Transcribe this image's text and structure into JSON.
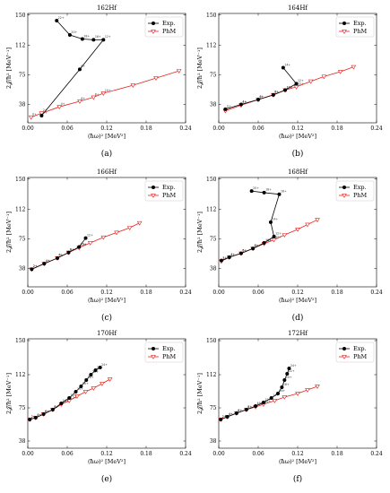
{
  "colors": {
    "exp": "#000000",
    "phm": "#e8201a",
    "frame": "#000000"
  },
  "legend": {
    "exp": "Exp.",
    "phm": "PhM",
    "placement": "upper-right"
  },
  "chart_data": [
    {
      "type": "line",
      "panel": "a",
      "caption": "(a)",
      "title": "162Hf",
      "xlabel": "(ħω)² [MeV²]",
      "ylabel": "2𝒥/ħ² [MeV⁻¹]",
      "xlim": [
        0,
        0.24
      ],
      "ylim": [
        15,
        152
      ],
      "xticks": [
        "0.00",
        "0.06",
        "0.12",
        "0.18",
        "0.24"
      ],
      "yticks": [
        "38",
        "75",
        "112",
        "150"
      ],
      "series": [
        {
          "name": "Exp.",
          "x": [
            0.021,
            0.079,
            0.115,
            0.1,
            0.083,
            0.064,
            0.044
          ],
          "y": [
            24,
            82,
            119,
            119,
            120,
            125,
            143
          ],
          "labels": [
            "2+",
            "6+",
            "12+",
            "16+",
            "18+",
            "20+",
            "22+"
          ]
        },
        {
          "name": "PhM",
          "x": [
            0.005,
            0.021,
            0.048,
            0.079,
            0.1,
            0.115,
            0.16,
            0.195,
            0.23
          ],
          "y": [
            22,
            27,
            35,
            42,
            47,
            52,
            62,
            71,
            80
          ],
          "labels": [
            "0+",
            "2+",
            "4+",
            "6+",
            "8+",
            "10+",
            "",
            "",
            ""
          ]
        }
      ]
    },
    {
      "type": "line",
      "panel": "b",
      "caption": "(b)",
      "title": "164Hf",
      "xlabel": "(ħω)² [MeV²]",
      "ylabel": "2𝒥/ħ² [MeV⁻¹]",
      "xlim": [
        0,
        0.24
      ],
      "ylim": [
        15,
        152
      ],
      "xticks": [
        "0.00",
        "0.06",
        "0.12",
        "0.18",
        "0.24"
      ],
      "yticks": [
        "38",
        "75",
        "112",
        "150"
      ],
      "series": [
        {
          "name": "Exp.",
          "x": [
            0.01,
            0.034,
            0.06,
            0.083,
            0.101,
            0.118,
            0.098
          ],
          "y": [
            32,
            38,
            44,
            50,
            56,
            64,
            84
          ],
          "labels": [
            "2+",
            "4+",
            "6+",
            "8+",
            "10+",
            "12+",
            "14+"
          ]
        },
        {
          "name": "PhM",
          "x": [
            0.01,
            0.034,
            0.06,
            0.083,
            0.101,
            0.118,
            0.14,
            0.16,
            0.185,
            0.205
          ],
          "y": [
            30,
            37,
            44,
            50,
            56,
            60,
            67,
            73,
            79,
            85
          ],
          "labels": [
            "2+",
            "4+",
            "6+",
            "8+",
            "10+",
            "12+",
            "",
            "",
            "",
            ""
          ]
        }
      ]
    },
    {
      "type": "line",
      "panel": "c",
      "caption": "(c)",
      "title": "166Hf",
      "xlabel": "(ħω)² [MeV²]",
      "ylabel": "2𝒥/ħ² [MeV⁻¹]",
      "xlim": [
        0,
        0.24
      ],
      "ylim": [
        15,
        152
      ],
      "xticks": [
        "0.00",
        "0.06",
        "0.12",
        "0.18",
        "0.24"
      ],
      "yticks": [
        "38",
        "75",
        "112",
        "150"
      ],
      "series": [
        {
          "name": "Exp.",
          "x": [
            0.006,
            0.025,
            0.045,
            0.062,
            0.078,
            0.088
          ],
          "y": [
            37,
            44,
            51,
            58,
            65,
            76
          ],
          "labels": [
            "2+",
            "4+",
            "6+",
            "8+",
            "10+",
            "12+"
          ]
        },
        {
          "name": "PhM",
          "x": [
            0.006,
            0.025,
            0.045,
            0.062,
            0.078,
            0.095,
            0.115,
            0.135,
            0.155,
            0.17
          ],
          "y": [
            37,
            44,
            51,
            58,
            64,
            70,
            77,
            83,
            89,
            95
          ],
          "labels": [
            "2+",
            "4+",
            "6+",
            "8+",
            "10+",
            "",
            "",
            "",
            "",
            ""
          ]
        }
      ]
    },
    {
      "type": "line",
      "panel": "d",
      "caption": "(d)",
      "title": "168Hf",
      "xlabel": "(ħω)² [MeV²]",
      "ylabel": "2𝒥/ħ² [MeV⁻¹]",
      "xlim": [
        0,
        0.24
      ],
      "ylim": [
        15,
        152
      ],
      "xticks": [
        "0.00",
        "0.06",
        "0.12",
        "0.18",
        "0.24"
      ],
      "yticks": [
        "38",
        "75",
        "112",
        "150"
      ],
      "series": [
        {
          "name": "Exp.",
          "x": [
            0.004,
            0.016,
            0.034,
            0.052,
            0.069,
            0.084,
            0.079,
            0.092,
            0.069,
            0.05
          ],
          "y": [
            48,
            52,
            57,
            63,
            70,
            78,
            96,
            131,
            133,
            135
          ],
          "labels": [
            "2+",
            "4+",
            "6+",
            "8+",
            "10+",
            "12+",
            "14+",
            "16+",
            "18+",
            "20+"
          ]
        },
        {
          "name": "PhM",
          "x": [
            0.004,
            0.016,
            0.034,
            0.052,
            0.069,
            0.084,
            0.1,
            0.12,
            0.135,
            0.15
          ],
          "y": [
            47,
            52,
            57,
            63,
            69,
            74,
            80,
            87,
            93,
            99
          ],
          "labels": [
            "2+",
            "4+",
            "6+",
            "8+",
            "10+",
            "12+",
            "",
            "",
            "",
            ""
          ]
        }
      ]
    },
    {
      "type": "line",
      "panel": "e",
      "caption": "(e)",
      "title": "170Hf",
      "xlabel": "(ħω)² [MeV²]",
      "ylabel": "2𝒥/ħ² [MeV⁻¹]",
      "xlim": [
        0,
        0.24
      ],
      "ylim": [
        30,
        152
      ],
      "xticks": [
        "0.00",
        "0.06",
        "0.12",
        "0.18",
        "0.24"
      ],
      "yticks": [
        "38",
        "75",
        "112",
        "150"
      ],
      "series": [
        {
          "name": "Exp.",
          "x": [
            0.003,
            0.012,
            0.024,
            0.038,
            0.051,
            0.063,
            0.073,
            0.081,
            0.089,
            0.096,
            0.103,
            0.11
          ],
          "y": [
            62,
            64,
            68,
            73,
            80,
            86,
            93,
            99,
            106,
            112,
            117,
            120
          ],
          "labels": [
            "2+",
            "4+",
            "6+",
            "8+",
            "10+",
            "12+",
            "14+",
            "16+",
            "18+",
            "20+",
            "22+",
            "24+"
          ]
        },
        {
          "name": "PhM",
          "x": [
            0.003,
            0.012,
            0.024,
            0.038,
            0.051,
            0.063,
            0.075,
            0.088,
            0.1,
            0.113,
            0.125
          ],
          "y": [
            62,
            64,
            68,
            73,
            79,
            83,
            88,
            93,
            97,
            102,
            107
          ],
          "labels": [
            "2+",
            "4+",
            "6+",
            "8+",
            "10+",
            "12+",
            "",
            "",
            "",
            "",
            ""
          ]
        }
      ]
    },
    {
      "type": "line",
      "panel": "f",
      "caption": "(f)",
      "title": "172Hf",
      "xlabel": "(ħω)² [MeV²]",
      "ylabel": "2𝒥/ħ² [MeV⁻¹]",
      "xlim": [
        0,
        0.24
      ],
      "ylim": [
        30,
        152
      ],
      "xticks": [
        "0.00",
        "0.06",
        "0.12",
        "0.18",
        "0.24"
      ],
      "yticks": [
        "38",
        "75",
        "112",
        "150"
      ],
      "series": [
        {
          "name": "Exp.",
          "x": [
            0.003,
            0.013,
            0.027,
            0.042,
            0.056,
            0.068,
            0.08,
            0.09,
            0.096,
            0.1,
            0.104,
            0.107
          ],
          "y": [
            62,
            65,
            69,
            73,
            77,
            81,
            86,
            91,
            98,
            106,
            113,
            119
          ],
          "labels": [
            "2+",
            "4+",
            "6+",
            "8+",
            "10+",
            "12+",
            "14+",
            "16+",
            "18+",
            "20+",
            "22+",
            "24+"
          ]
        },
        {
          "name": "PhM",
          "x": [
            0.003,
            0.013,
            0.027,
            0.042,
            0.056,
            0.068,
            0.085,
            0.1,
            0.12,
            0.135,
            0.15
          ],
          "y": [
            62,
            65,
            69,
            73,
            76,
            79,
            83,
            87,
            91,
            95,
            99
          ],
          "labels": [
            "2+",
            "4+",
            "6+",
            "8+",
            "10+",
            "12+",
            "",
            "",
            "",
            "",
            ""
          ]
        }
      ]
    }
  ]
}
